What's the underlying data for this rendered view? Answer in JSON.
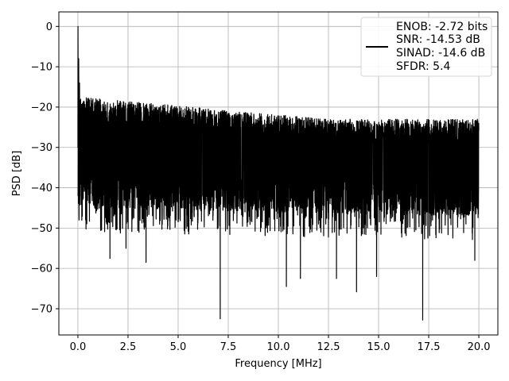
{
  "chart_data": {
    "type": "line",
    "title": "",
    "xlabel": "Frequency [MHz]",
    "ylabel": "PSD [dB]",
    "xlim": [
      -0.95,
      20.95
    ],
    "ylim": [
      -76.5,
      3.6
    ],
    "xticks": [
      0.0,
      2.5,
      5.0,
      7.5,
      10.0,
      12.5,
      15.0,
      17.5,
      20.0
    ],
    "xtick_labels": [
      "0.0",
      "2.5",
      "5.0",
      "7.5",
      "10.0",
      "12.5",
      "15.0",
      "17.5",
      "20.0"
    ],
    "yticks": [
      0,
      -10,
      -20,
      -30,
      -40,
      -50,
      -60,
      -70
    ],
    "ytick_labels": [
      "0",
      "−10",
      "−20",
      "−30",
      "−40",
      "−50",
      "−60",
      "−70"
    ],
    "grid": true,
    "legend": {
      "placement": "top-right",
      "lines": [
        "ENOB: -2.72 bits",
        "SNR: -14.53 dB",
        "SINAD: -14.6 dB",
        "SFDR: 5.4"
      ]
    },
    "series": [
      {
        "color": "#000000",
        "x_range": [
          0.0,
          20.0
        ],
        "description_points": {
          "peak": [
            0.0,
            0.0
          ],
          "upper_envelope_db": [
            -17.5,
            -23.0
          ],
          "lower_envelope_db": [
            -45.0,
            -47.0
          ],
          "deep_nulls": [
            [
              1.6,
              -57.5
            ],
            [
              2.4,
              -55.0
            ],
            [
              3.4,
              -58.5
            ],
            [
              7.1,
              -72.5
            ],
            [
              10.4,
              -64.5
            ],
            [
              11.1,
              -62.5
            ],
            [
              12.9,
              -62.5
            ],
            [
              13.9,
              -65.8
            ],
            [
              14.9,
              -62.0
            ],
            [
              17.2,
              -72.8
            ],
            [
              19.8,
              -58.0
            ]
          ]
        }
      }
    ]
  }
}
